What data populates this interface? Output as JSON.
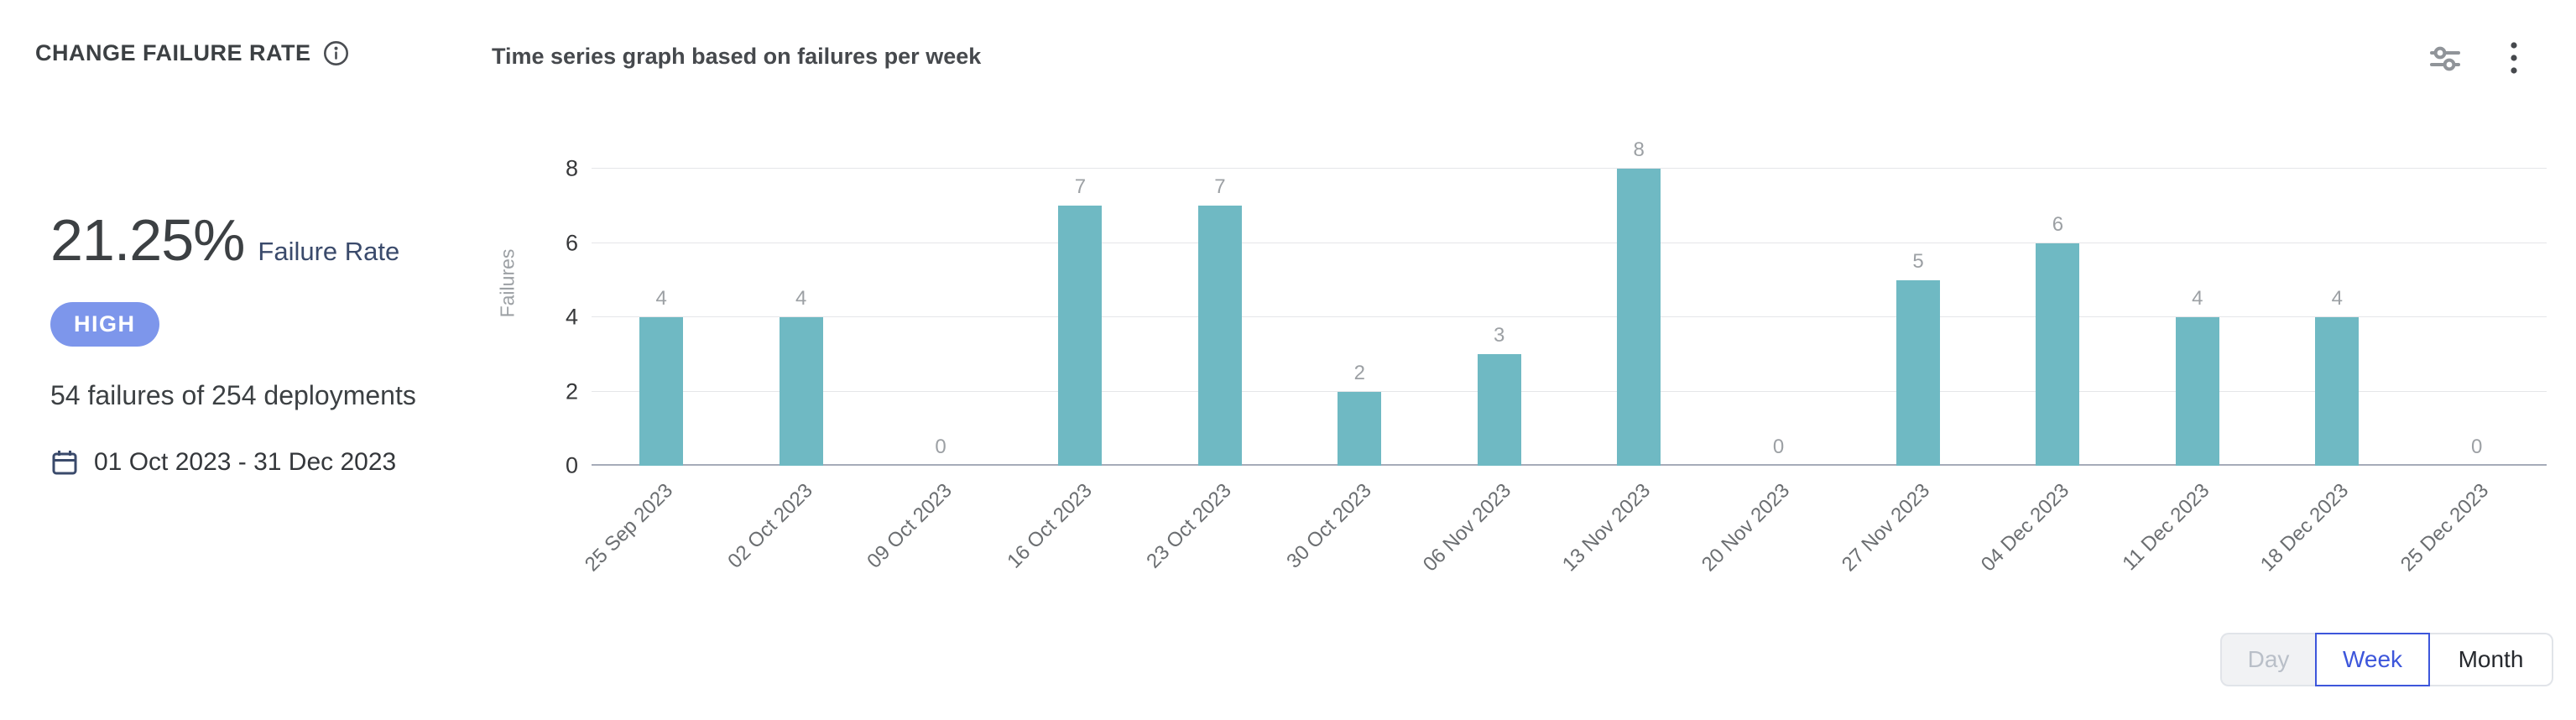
{
  "header": {
    "title": "CHANGE FAILURE RATE",
    "subtitle": "Time series graph based on failures per week",
    "icons": [
      "info-icon",
      "sliders-icon",
      "kebab-menu-icon"
    ]
  },
  "stats": {
    "percentage": "21.25%",
    "percentage_label": "Failure Rate",
    "severity": "HIGH",
    "summary": "54 failures of 254 deployments",
    "date_range": "01 Oct 2023 - 31 Dec 2023",
    "date_icon": "calendar-icon"
  },
  "chart_data": {
    "type": "bar",
    "title": "Time series graph based on failures per week",
    "categories": [
      "25 Sep 2023",
      "02 Oct 2023",
      "09 Oct 2023",
      "16 Oct 2023",
      "23 Oct 2023",
      "30 Oct 2023",
      "06 Nov 2023",
      "13 Nov 2023",
      "20 Nov 2023",
      "27 Nov 2023",
      "04 Dec 2023",
      "11 Dec 2023",
      "18 Dec 2023",
      "25 Dec 2023"
    ],
    "values": [
      4,
      4,
      0,
      7,
      7,
      2,
      3,
      8,
      0,
      5,
      6,
      4,
      4,
      0
    ],
    "xlabel": "",
    "ylabel": "Failures",
    "ylim": [
      0,
      8
    ],
    "yticks": [
      0,
      2,
      4,
      6,
      8
    ],
    "grid": true,
    "legend": false,
    "bar_color": "#6fb9c3"
  },
  "controls": {
    "granularity": [
      {
        "label": "Day",
        "state": "disabled"
      },
      {
        "label": "Week",
        "state": "selected"
      },
      {
        "label": "Month",
        "state": "default"
      }
    ]
  },
  "colors": {
    "bar": "#6fb9c3",
    "severity_badge": "#7d96eb",
    "selected_toggle": "#3d56db",
    "accent_navy": "#3a4a6b",
    "grid_line": "#e5e6e9",
    "axis_line": "#a6acb9",
    "muted_text": "#9ca0a4"
  }
}
